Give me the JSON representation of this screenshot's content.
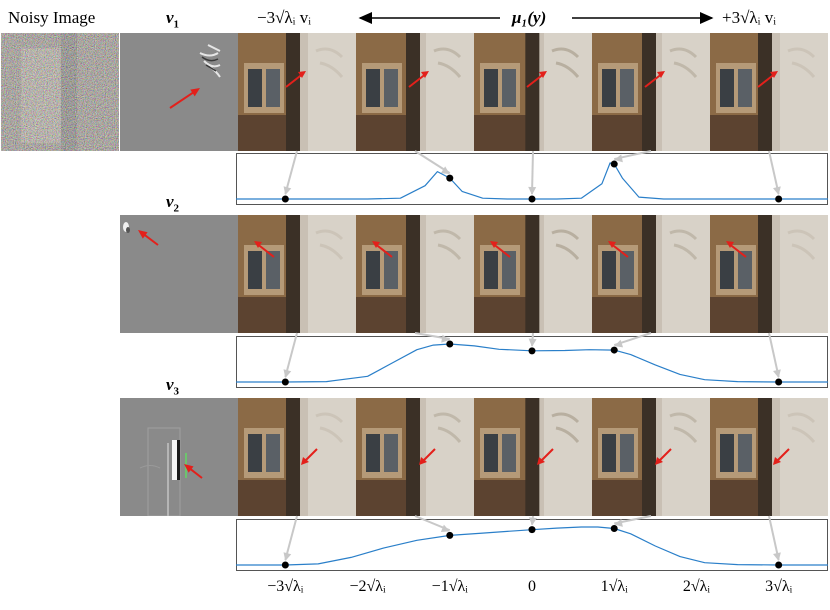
{
  "labels": {
    "noisy": "Noisy Image",
    "v1": "v",
    "v1_sub": "1",
    "v2": "v",
    "v2_sub": "2",
    "v3": "v",
    "v3_sub": "3",
    "top_left": "−3√λᵢ vᵢ",
    "top_mid": "μ₁(y)",
    "top_right": "+3√λᵢ vᵢ"
  },
  "axis_ticks": [
    "−3√λᵢ",
    "−2√λᵢ",
    "−1√λᵢ",
    "0",
    "1√λᵢ",
    "2√λᵢ",
    "3√λᵢ"
  ],
  "colors": {
    "curve": "#2a7fc9",
    "arrow": "#e3201b",
    "connector": "#c8c8c8",
    "dot": "#000000"
  },
  "chart_data": [
    {
      "type": "line",
      "title": "",
      "x_ticks": [
        -3,
        -2,
        -1,
        0,
        1,
        2,
        3
      ],
      "xlim": [
        -3.6,
        3.6
      ],
      "x": [
        -3.6,
        -3,
        -2.5,
        -2,
        -1.6,
        -1.3,
        -1.15,
        -1,
        -0.85,
        -0.6,
        -0.3,
        0,
        0.3,
        0.6,
        0.85,
        0.95,
        1,
        1.1,
        1.3,
        1.6,
        2,
        2.5,
        3,
        3.6
      ],
      "values": [
        0,
        0,
        0,
        0,
        0.02,
        0.35,
        0.72,
        0.55,
        0.2,
        0.02,
        0,
        0,
        0,
        0.02,
        0.4,
        0.95,
        0.92,
        0.55,
        0.05,
        0,
        0,
        0,
        0,
        0
      ],
      "samples_x": [
        -3,
        -1,
        0,
        1,
        3
      ],
      "samples_y": [
        0,
        0.55,
        0,
        0.92,
        0
      ]
    },
    {
      "type": "line",
      "title": "",
      "x_ticks": [
        -3,
        -2,
        -1,
        0,
        1,
        2,
        3
      ],
      "xlim": [
        -3.6,
        3.6
      ],
      "x": [
        -3.6,
        -3,
        -2.5,
        -2,
        -1.7,
        -1.4,
        -1.2,
        -1,
        -0.7,
        -0.4,
        0,
        0.4,
        0.7,
        1,
        1.2,
        1.5,
        1.8,
        2.1,
        2.5,
        3,
        3.6
      ],
      "values": [
        0,
        0,
        0.01,
        0.15,
        0.5,
        0.85,
        0.97,
        1,
        0.95,
        0.86,
        0.82,
        0.83,
        0.85,
        0.84,
        0.72,
        0.45,
        0.2,
        0.06,
        0.01,
        0,
        0
      ],
      "samples_x": [
        -3,
        -1,
        0,
        1,
        3
      ],
      "samples_y": [
        0,
        1,
        0.82,
        0.84,
        0
      ]
    },
    {
      "type": "line",
      "title": "",
      "x_ticks": [
        -3,
        -2,
        -1,
        0,
        1,
        2,
        3
      ],
      "xlim": [
        -3.6,
        3.6
      ],
      "x": [
        -3.6,
        -3,
        -2.6,
        -2.2,
        -1.8,
        -1.4,
        -1,
        -0.6,
        -0.2,
        0,
        0.3,
        0.6,
        0.8,
        1,
        1.2,
        1.5,
        1.8,
        2.1,
        2.5,
        3,
        3.6
      ],
      "values": [
        0,
        0,
        0.03,
        0.2,
        0.45,
        0.65,
        0.78,
        0.84,
        0.9,
        0.93,
        0.97,
        1,
        1,
        0.96,
        0.82,
        0.5,
        0.22,
        0.06,
        0.01,
        0,
        0
      ],
      "samples_x": [
        -3,
        -1,
        0,
        1,
        3
      ],
      "samples_y": [
        0,
        0.78,
        0.93,
        0.96,
        0
      ]
    }
  ]
}
